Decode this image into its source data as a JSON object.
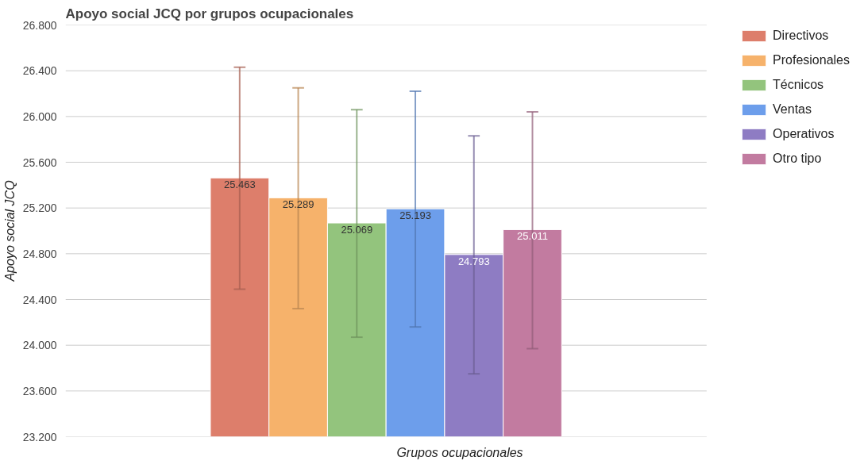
{
  "chart_data": {
    "type": "bar",
    "title": "Apoyo social JCQ por grupos ocupacionales",
    "xlabel": "Grupos ocupacionales",
    "ylabel": "Apoyo social JCQ",
    "categories": [
      null
    ],
    "series": [
      {
        "name": "Directivos",
        "color": "#dd7e6b",
        "values": [
          25.463
        ],
        "errors": [
          [
            24.49,
            26.43
          ]
        ]
      },
      {
        "name": "Profesionales",
        "color": "#f6b26b",
        "values": [
          25.289
        ],
        "errors": [
          [
            24.32,
            26.25
          ]
        ]
      },
      {
        "name": "Técnicos",
        "color": "#93c47d",
        "values": [
          25.069
        ],
        "errors": [
          [
            24.07,
            26.06
          ]
        ]
      },
      {
        "name": "Ventas",
        "color": "#6d9eeb",
        "values": [
          25.193
        ],
        "errors": [
          [
            24.16,
            26.22
          ]
        ]
      },
      {
        "name": "Operativos",
        "color": "#8e7cc3",
        "values": [
          24.793
        ],
        "errors": [
          [
            23.75,
            25.83
          ]
        ]
      },
      {
        "name": "Otro tipo",
        "color": "#c27ba0",
        "values": [
          25.011
        ],
        "errors": [
          [
            23.97,
            26.04
          ]
        ]
      }
    ],
    "ylim": [
      23.2,
      26.8
    ],
    "yticks": [
      {
        "value": 23.2,
        "label": "23.200"
      },
      {
        "value": 23.6,
        "label": "23.600"
      },
      {
        "value": 24.0,
        "label": "24.000"
      },
      {
        "value": 24.4,
        "label": "24.400"
      },
      {
        "value": 24.8,
        "label": "24.800"
      },
      {
        "value": 25.2,
        "label": "25.200"
      },
      {
        "value": 25.6,
        "label": "25.600"
      },
      {
        "value": 26.0,
        "label": "26.000"
      },
      {
        "value": 26.4,
        "label": "26.400"
      },
      {
        "value": 26.8,
        "label": "26.800"
      }
    ],
    "grid": "y",
    "legend": "right",
    "data_labels": true
  }
}
